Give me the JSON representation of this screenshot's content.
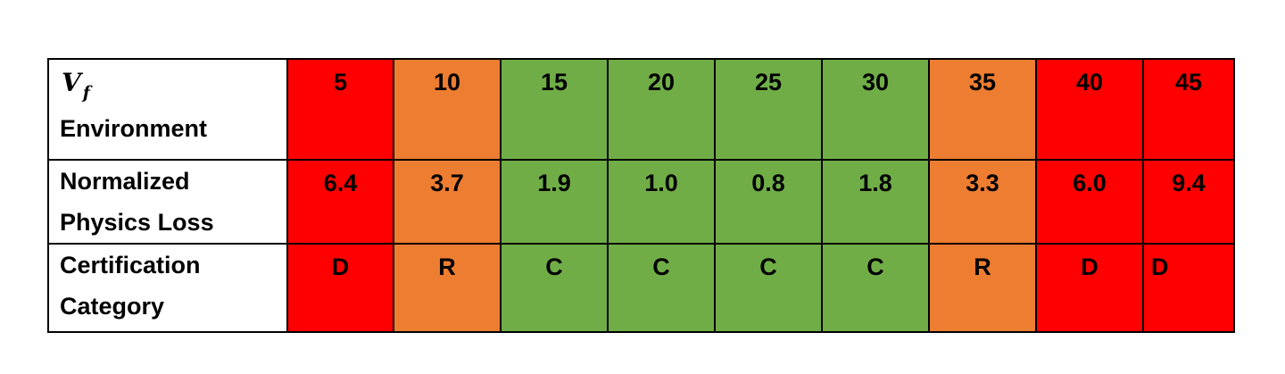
{
  "table": {
    "header": {
      "symbol": "V",
      "subscript": "f",
      "label": "Environment",
      "values": [
        "5",
        "10",
        "15",
        "20",
        "25",
        "30",
        "35",
        "40",
        "45"
      ]
    },
    "colors": [
      "#ff0000",
      "#ed7d31",
      "#70ad47",
      "#70ad47",
      "#70ad47",
      "#70ad47",
      "#ed7d31",
      "#ff0000",
      "#ff0000"
    ],
    "rows": [
      {
        "label": "Normalized Physics Loss",
        "values": [
          "6.4",
          "3.7",
          "1.9",
          "1.0",
          "0.8",
          "1.8",
          "3.3",
          "6.0",
          "9.4"
        ]
      },
      {
        "label": "Certification Category",
        "values": [
          "D",
          "R",
          "C",
          "C",
          "C",
          "C",
          "R",
          "D",
          "D"
        ]
      }
    ]
  }
}
